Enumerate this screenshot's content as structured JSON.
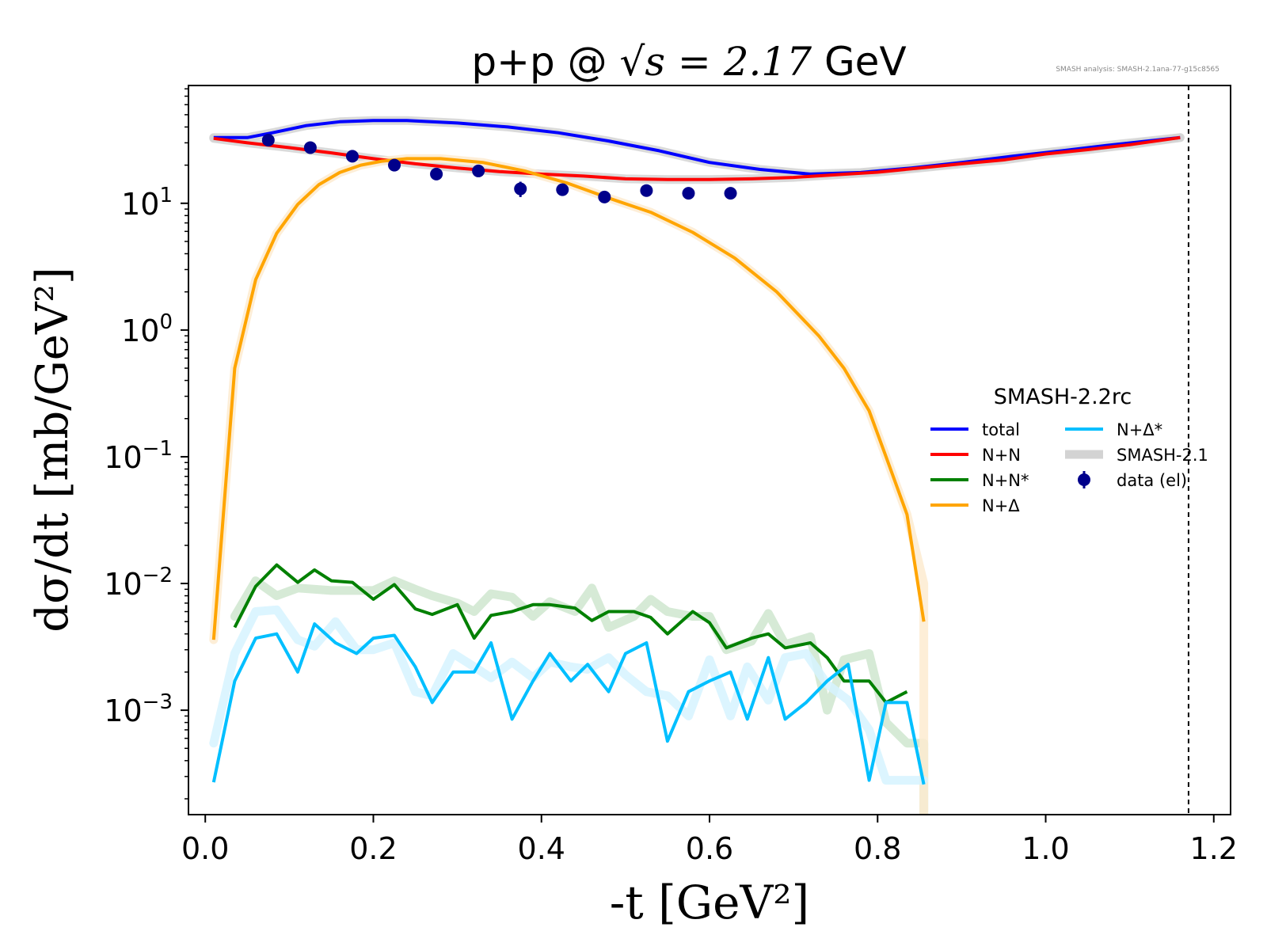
{
  "chart_data": {
    "type": "line",
    "title_left": "p+p @ ",
    "title_math": "√s = 2.17",
    "title_right": " GeV",
    "annotation": "SMASH analysis: SMASH-2.1ana-77-g15c8565",
    "xlabel": "-t [GeV²]",
    "ylabel": "dσ/dt [mb/GeV²]",
    "xlim": [
      -0.02,
      1.22
    ],
    "ylim": [
      0.00015,
      85
    ],
    "y_scale": "log",
    "x_ticks": [
      {
        "value": 0.0,
        "label": "0.0"
      },
      {
        "value": 0.2,
        "label": "0.2"
      },
      {
        "value": 0.4,
        "label": "0.4"
      },
      {
        "value": 0.6,
        "label": "0.6"
      },
      {
        "value": 0.8,
        "label": "0.8"
      },
      {
        "value": 1.0,
        "label": "1.0"
      },
      {
        "value": 1.2,
        "label": "1.2"
      }
    ],
    "y_ticks": [
      {
        "value": 0.001,
        "base": "10",
        "exp": "−3"
      },
      {
        "value": 0.01,
        "base": "10",
        "exp": "−2"
      },
      {
        "value": 0.1,
        "base": "10",
        "exp": "−1"
      },
      {
        "value": 1,
        "base": "10",
        "exp": "0"
      },
      {
        "value": 10,
        "base": "10",
        "exp": "1"
      }
    ],
    "vline_x": 1.17,
    "legend": {
      "title": "SMASH-2.2rc",
      "placement": "center-right",
      "entries": [
        {
          "label": "total",
          "color": "#0000ff",
          "kind": "line"
        },
        {
          "label": "N+N",
          "color": "#ff0000",
          "kind": "line"
        },
        {
          "label": "N+N*",
          "color": "#008000",
          "kind": "line"
        },
        {
          "label": "N+Δ",
          "color": "#ffa500",
          "kind": "line"
        },
        {
          "label": "N+Δ*",
          "color": "#00bfff",
          "kind": "line"
        },
        {
          "label": "SMASH-2.1",
          "color": "#d3d3d3",
          "kind": "band"
        },
        {
          "label": "data (el)",
          "color": "#00008b",
          "kind": "marker"
        }
      ]
    },
    "series": [
      {
        "name": "total",
        "color": "#0000ff",
        "x": [
          0.01,
          0.05,
          0.08,
          0.12,
          0.16,
          0.2,
          0.24,
          0.3,
          0.36,
          0.42,
          0.48,
          0.54,
          0.6,
          0.66,
          0.72,
          0.78,
          0.84,
          0.9,
          0.96,
          1.02,
          1.08,
          1.16
        ],
        "y": [
          33,
          33,
          36,
          41,
          44,
          45,
          45,
          43,
          40,
          36,
          31,
          26,
          21,
          18.5,
          17,
          17.5,
          19,
          21,
          23.5,
          26,
          29,
          33
        ]
      },
      {
        "name": "N+N",
        "color": "#ff0000",
        "x": [
          0.01,
          0.05,
          0.1,
          0.15,
          0.2,
          0.25,
          0.3,
          0.35,
          0.4,
          0.45,
          0.5,
          0.55,
          0.6,
          0.65,
          0.7,
          0.75,
          0.8,
          0.85,
          0.9,
          0.95,
          1.0,
          1.05,
          1.1,
          1.16
        ],
        "y": [
          32.5,
          30,
          27.5,
          25,
          22.5,
          20.5,
          19,
          17.8,
          17,
          16.4,
          15.6,
          15.4,
          15.4,
          15.6,
          16,
          16.8,
          17.6,
          19,
          20.5,
          22,
          24.5,
          26.5,
          29,
          33
        ]
      },
      {
        "name": "N+N*",
        "color": "#008000",
        "x": [
          0.035,
          0.06,
          0.085,
          0.11,
          0.13,
          0.15,
          0.175,
          0.2,
          0.225,
          0.25,
          0.27,
          0.3,
          0.32,
          0.34,
          0.365,
          0.39,
          0.41,
          0.44,
          0.46,
          0.48,
          0.51,
          0.53,
          0.55,
          0.58,
          0.6,
          0.62,
          0.65,
          0.67,
          0.69,
          0.72,
          0.74,
          0.76,
          0.79,
          0.81,
          0.835
        ],
        "y": [
          0.0045,
          0.0095,
          0.014,
          0.0102,
          0.0128,
          0.0105,
          0.0102,
          0.0075,
          0.0098,
          0.0063,
          0.0057,
          0.0068,
          0.0037,
          0.0056,
          0.006,
          0.0068,
          0.0068,
          0.0064,
          0.0051,
          0.006,
          0.006,
          0.0054,
          0.004,
          0.006,
          0.0049,
          0.0031,
          0.0037,
          0.004,
          0.0031,
          0.0034,
          0.0026,
          0.0017,
          0.0017,
          0.00115,
          0.0014
        ]
      },
      {
        "name": "N+Δ",
        "color": "#ffa500",
        "x": [
          0.01,
          0.035,
          0.06,
          0.085,
          0.11,
          0.135,
          0.16,
          0.185,
          0.21,
          0.24,
          0.28,
          0.33,
          0.38,
          0.43,
          0.48,
          0.53,
          0.58,
          0.63,
          0.68,
          0.73,
          0.76,
          0.79,
          0.81,
          0.835,
          0.855
        ],
        "y": [
          0.0036,
          0.5,
          2.5,
          5.8,
          9.8,
          14,
          17.5,
          20,
          21.5,
          22.5,
          22.5,
          21,
          18,
          14.5,
          11,
          8.5,
          5.9,
          3.7,
          2.0,
          0.9,
          0.5,
          0.23,
          0.1,
          0.035,
          0.005
        ]
      },
      {
        "name": "N+Δ*",
        "color": "#00bfff",
        "x": [
          0.01,
          0.035,
          0.06,
          0.085,
          0.11,
          0.13,
          0.155,
          0.18,
          0.2,
          0.225,
          0.25,
          0.27,
          0.295,
          0.32,
          0.34,
          0.365,
          0.39,
          0.41,
          0.435,
          0.455,
          0.48,
          0.5,
          0.525,
          0.55,
          0.575,
          0.6,
          0.625,
          0.645,
          0.67,
          0.69,
          0.715,
          0.74,
          0.765,
          0.79,
          0.81,
          0.835,
          0.855
        ],
        "y": [
          0.00027,
          0.0017,
          0.0037,
          0.004,
          0.002,
          0.0048,
          0.0034,
          0.0028,
          0.0037,
          0.0039,
          0.0022,
          0.00115,
          0.002,
          0.002,
          0.0034,
          0.00085,
          0.0017,
          0.0028,
          0.0017,
          0.0023,
          0.0014,
          0.0028,
          0.0034,
          0.00057,
          0.0014,
          0.0017,
          0.002,
          0.00085,
          0.0026,
          0.00085,
          0.00115,
          0.0017,
          0.0023,
          0.00028,
          0.00115,
          0.00115,
          0.00026
        ]
      }
    ],
    "reference_series": [
      {
        "name": "SMASH-2.1 total",
        "color": "#d3d3d3",
        "x": [
          0.01,
          0.05,
          0.08,
          0.12,
          0.16,
          0.2,
          0.24,
          0.3,
          0.36,
          0.42,
          0.48,
          0.54,
          0.6,
          0.66,
          0.72,
          0.78,
          0.84,
          0.9,
          0.96,
          1.02,
          1.08,
          1.16
        ],
        "y": [
          33,
          33,
          36,
          41,
          44,
          45,
          45,
          43,
          40,
          36,
          31,
          26,
          21,
          18.5,
          17,
          17.5,
          19,
          21,
          23.5,
          26,
          29,
          33
        ]
      },
      {
        "name": "SMASH-2.1 N+N",
        "color": "#d3d3d3",
        "x": [
          0.01,
          0.05,
          0.1,
          0.15,
          0.2,
          0.25,
          0.3,
          0.35,
          0.4,
          0.45,
          0.5,
          0.55,
          0.6,
          0.65,
          0.7,
          0.75,
          0.8,
          0.85,
          0.9,
          0.95,
          1.0,
          1.05,
          1.1,
          1.16
        ],
        "y": [
          32.5,
          30,
          27.5,
          25,
          22.5,
          20.5,
          19,
          17.8,
          17,
          16.4,
          15.6,
          15.4,
          15.4,
          15.6,
          16,
          16.8,
          17.6,
          19,
          20.5,
          22,
          24.5,
          26.5,
          29,
          33
        ]
      },
      {
        "name": "SMASH-2.1 N+N*",
        "color": "#cfe6cf",
        "x": [
          0.035,
          0.06,
          0.085,
          0.11,
          0.15,
          0.2,
          0.225,
          0.25,
          0.27,
          0.3,
          0.32,
          0.34,
          0.365,
          0.39,
          0.41,
          0.44,
          0.46,
          0.48,
          0.51,
          0.53,
          0.55,
          0.58,
          0.6,
          0.62,
          0.65,
          0.67,
          0.69,
          0.72,
          0.74,
          0.76,
          0.79,
          0.81,
          0.835,
          0.855,
          0.855
        ],
        "y": [
          0.0055,
          0.0105,
          0.008,
          0.0092,
          0.0088,
          0.0088,
          0.0105,
          0.009,
          0.008,
          0.007,
          0.006,
          0.0083,
          0.0078,
          0.0055,
          0.0072,
          0.006,
          0.0092,
          0.0045,
          0.0055,
          0.0075,
          0.006,
          0.0055,
          0.0055,
          0.003,
          0.0035,
          0.0058,
          0.0033,
          0.0038,
          0.001,
          0.0025,
          0.0028,
          0.0008,
          0.00055,
          0.00055,
          0.00015
        ]
      },
      {
        "name": "SMASH-2.1 N+Δ",
        "color": "#fdebd0",
        "x": [
          0.01,
          0.035,
          0.06,
          0.085,
          0.11,
          0.135,
          0.16,
          0.185,
          0.21,
          0.24,
          0.28,
          0.33,
          0.38,
          0.43,
          0.48,
          0.53,
          0.58,
          0.63,
          0.68,
          0.73,
          0.76,
          0.79,
          0.81,
          0.835,
          0.855,
          0.855
        ],
        "y": [
          0.0036,
          0.5,
          2.5,
          5.8,
          9.8,
          14,
          17.5,
          20,
          21.5,
          22.5,
          22.5,
          21,
          18,
          14.5,
          11,
          8.5,
          5.9,
          3.7,
          2.0,
          0.9,
          0.5,
          0.23,
          0.1,
          0.035,
          0.01,
          0.00015
        ]
      },
      {
        "name": "SMASH-2.1 N+Δ*",
        "color": "#d6f3ff",
        "x": [
          0.01,
          0.035,
          0.06,
          0.085,
          0.11,
          0.13,
          0.155,
          0.18,
          0.2,
          0.225,
          0.25,
          0.27,
          0.295,
          0.32,
          0.34,
          0.365,
          0.39,
          0.41,
          0.435,
          0.455,
          0.48,
          0.5,
          0.525,
          0.55,
          0.575,
          0.6,
          0.625,
          0.645,
          0.67,
          0.69,
          0.715,
          0.74,
          0.765,
          0.79,
          0.81,
          0.835,
          0.855
        ],
        "y": [
          0.00055,
          0.0028,
          0.006,
          0.0062,
          0.0036,
          0.0032,
          0.005,
          0.003,
          0.003,
          0.0034,
          0.0014,
          0.0013,
          0.0028,
          0.0022,
          0.0018,
          0.0024,
          0.0018,
          0.0024,
          0.0022,
          0.0021,
          0.0026,
          0.0019,
          0.0014,
          0.0013,
          0.0009,
          0.0025,
          0.0009,
          0.0022,
          0.0012,
          0.0026,
          0.0028,
          0.0016,
          0.0012,
          0.0007,
          0.00028,
          0.00028,
          0.00028
        ]
      }
    ],
    "data_points": {
      "name": "data (el)",
      "color": "#00008b",
      "x": [
        0.075,
        0.125,
        0.175,
        0.225,
        0.275,
        0.325,
        0.375,
        0.425,
        0.475,
        0.525,
        0.575,
        0.625
      ],
      "y": [
        31.5,
        27.5,
        23.5,
        20,
        17,
        18,
        13,
        12.8,
        11.2,
        12.6,
        12,
        12
      ],
      "yerr": [
        0,
        0,
        0,
        0,
        0,
        0,
        1.8,
        0,
        0,
        0,
        0,
        0
      ]
    }
  }
}
